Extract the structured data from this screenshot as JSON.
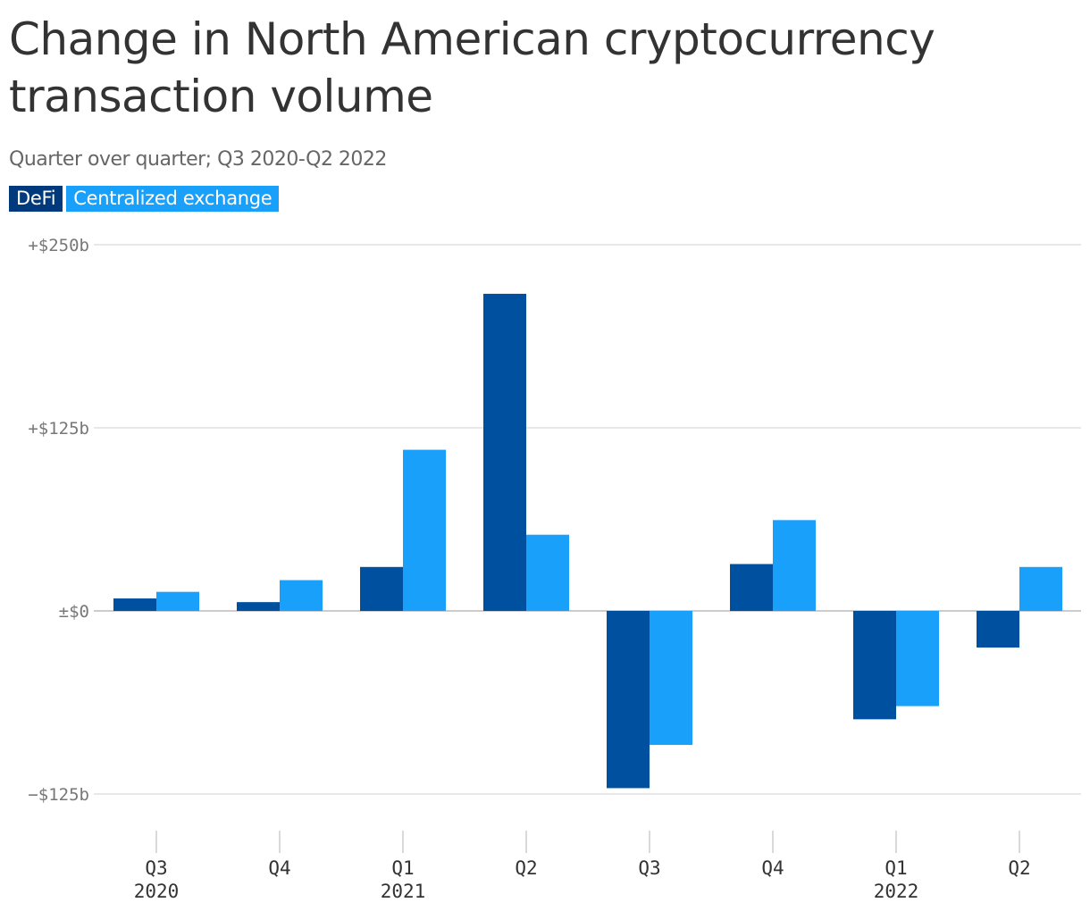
{
  "title": "Change in North American cryptocurrency transaction volume",
  "subtitle": "Quarter over quarter; Q3 2020-Q2 2022",
  "colors": {
    "defi": "#0050a0",
    "defi_legend": "#003a7d",
    "cex": "#18a0fb"
  },
  "chart_data": {
    "type": "bar",
    "title": "Change in North American cryptocurrency transaction volume",
    "subtitle": "Quarter over quarter; Q3 2020-Q2 2022",
    "categories": [
      "Q3",
      "Q4",
      "Q1",
      "Q2",
      "Q3",
      "Q4",
      "Q1",
      "Q2"
    ],
    "category_years": [
      "2020",
      "",
      "2021",
      "",
      "",
      "",
      "2022",
      ""
    ],
    "series": [
      {
        "name": "DeFi",
        "values": [
          8.5,
          6,
          30,
          216.5,
          -121,
          32,
          -74,
          -25
        ]
      },
      {
        "name": "Centralized exchange",
        "values": [
          13,
          21,
          110,
          52,
          -91.5,
          62,
          -65,
          30
        ]
      }
    ],
    "ylim": [
      -145,
      250
    ],
    "yticks": [
      250,
      125,
      0,
      -125
    ],
    "ytick_labels": [
      "+$250b",
      "+$125b",
      "±$0",
      "−$125b"
    ],
    "grid": true,
    "legend": "top-left"
  }
}
